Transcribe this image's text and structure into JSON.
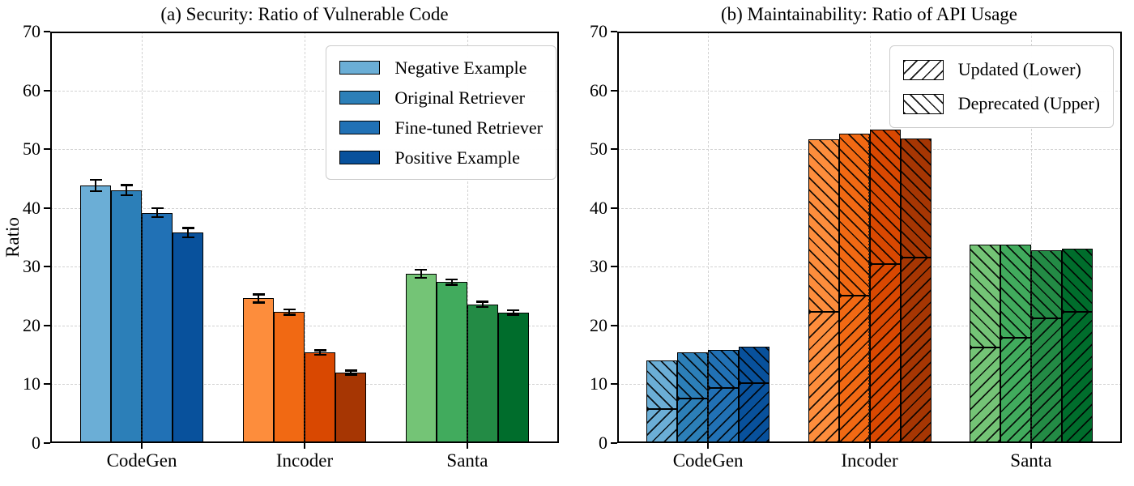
{
  "figure": {
    "background": "#ffffff"
  },
  "chart_data": [
    {
      "type": "bar",
      "title": "(a) Security: Ratio of Vulnerable Code",
      "ylabel": "Ratio",
      "ylim": [
        0,
        70
      ],
      "yticks": [
        0,
        10,
        20,
        30,
        40,
        50,
        60,
        70
      ],
      "grid": true,
      "legend_position": "upper right",
      "categories": [
        "CodeGen",
        "Incoder",
        "Santa"
      ],
      "series": [
        {
          "name": "Negative Example",
          "values": [
            43.8,
            24.6,
            28.8
          ],
          "errors": [
            1.0,
            0.7,
            0.7
          ]
        },
        {
          "name": "Original Retriever",
          "values": [
            43.0,
            22.3,
            27.4
          ],
          "errors": [
            0.9,
            0.5,
            0.5
          ]
        },
        {
          "name": "Fine-tuned Retriever",
          "values": [
            39.2,
            15.4,
            23.6
          ],
          "errors": [
            0.8,
            0.4,
            0.5
          ]
        },
        {
          "name": "Positive Example",
          "values": [
            35.8,
            12.0,
            22.2
          ],
          "errors": [
            0.8,
            0.4,
            0.4
          ]
        }
      ],
      "group_colors": {
        "CodeGen": [
          "#6baed6",
          "#2c7fb8",
          "#2171b5",
          "#08519c"
        ],
        "Incoder": [
          "#fd8d3c",
          "#f16913",
          "#d94801",
          "#a63603"
        ],
        "Santa": [
          "#74c476",
          "#41ab5d",
          "#238b45",
          "#006d2c"
        ]
      },
      "legend_swatch_colors": [
        "#6baed6",
        "#2c7fb8",
        "#2171b5",
        "#08519c"
      ]
    },
    {
      "type": "stacked-bar",
      "title": "(b) Maintainability: Ratio of API Usage",
      "ylim": [
        0,
        70
      ],
      "yticks": [
        0,
        10,
        20,
        30,
        40,
        50,
        60,
        70
      ],
      "grid": true,
      "legend_position": "upper right",
      "categories": [
        "CodeGen",
        "Incoder",
        "Santa"
      ],
      "legend": [
        {
          "label": "Updated (Lower)",
          "hatch": "/"
        },
        {
          "label": "Deprecated (Upper)",
          "hatch": "\\"
        }
      ],
      "updated_lower": [
        [
          5.8,
          7.6,
          9.4,
          10.2
        ],
        [
          22.3,
          25.1,
          30.5,
          31.5
        ],
        [
          16.3,
          17.9,
          21.2,
          22.3
        ]
      ],
      "deprecated_upper": [
        [
          8.2,
          7.9,
          6.4,
          6.2
        ],
        [
          29.4,
          27.5,
          22.8,
          20.3
        ],
        [
          17.5,
          15.9,
          11.6,
          10.8
        ]
      ],
      "bar_totals": [
        [
          14.0,
          15.5,
          15.8,
          16.4
        ],
        [
          51.7,
          52.6,
          53.3,
          51.8
        ],
        [
          33.8,
          33.8,
          32.8,
          33.1
        ]
      ],
      "group_colors": {
        "CodeGen": [
          "#6baed6",
          "#2c7fb8",
          "#2171b5",
          "#08519c"
        ],
        "Incoder": [
          "#fd8d3c",
          "#f16913",
          "#d94801",
          "#a63603"
        ],
        "Santa": [
          "#74c476",
          "#41ab5d",
          "#238b45",
          "#006d2c"
        ]
      }
    }
  ]
}
